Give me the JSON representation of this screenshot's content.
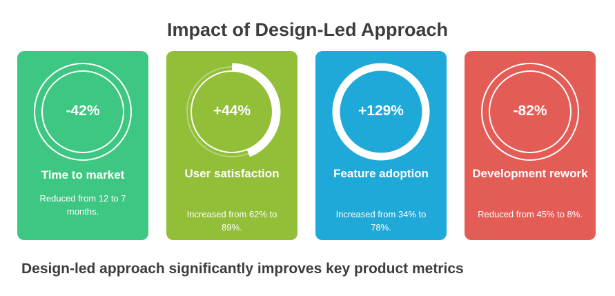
{
  "title": "Impact of Design-Led Approach",
  "cards": [
    {
      "value": "-42%",
      "title": "Time to market",
      "description": "Reduced from 12 to 7 months.",
      "color": "#3ec683",
      "progress": 0
    },
    {
      "value": "+44%",
      "title": "User satisfaction",
      "description": "Increased from 62% to 89%.",
      "color": "#92be38",
      "progress": 0.44
    },
    {
      "value": "+129%",
      "title": "Feature adoption",
      "description": "Increased from 34% to 78%.",
      "color": "#1fa9d9",
      "progress": 1
    },
    {
      "value": "-82%",
      "title": "Development rework",
      "description": "Reduced from 45% to 8%.",
      "color": "#e45c56",
      "progress": 0
    }
  ],
  "footer": "Design-led approach significantly improves key product metrics"
}
